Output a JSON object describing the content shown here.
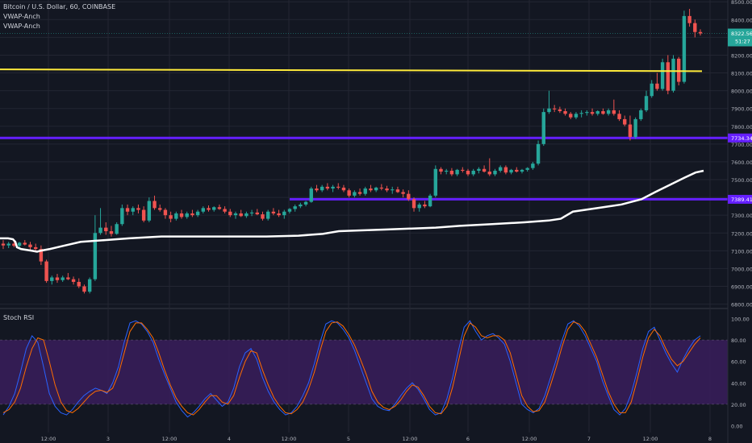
{
  "header": {
    "symbol": "Bitcoin / U.S. Dollar, 60, COINBASE",
    "indicator1": "VWAP-Anch",
    "indicator2": "VWAP-Anch"
  },
  "rsi_pane": {
    "title": "Stoch RSI"
  },
  "colors": {
    "background": "#131722",
    "grid": "#232632",
    "up": "#26a69a",
    "down": "#ef5350",
    "yellow": "#ffeb3b",
    "purple": "#651fff",
    "vwap": "#ffffff",
    "k": "#2962ff",
    "d": "#ff6d00",
    "band": "#3a1d5c"
  },
  "price_tags": {
    "last_price": "8322.56",
    "countdown": "51:27",
    "level_high": "7734.34",
    "level_low": "7389.41"
  },
  "chart_data": [
    {
      "type": "candlestick",
      "pane": "price",
      "y_ticks": [
        "8500.00",
        "8400.00",
        "8300.00",
        "8200.00",
        "8100.00",
        "8000.00",
        "7900.00",
        "7800.00",
        "7700.00",
        "7600.00",
        "7500.00",
        "7400.00",
        "7300.00",
        "7200.00",
        "7100.00",
        "7000.00",
        "6900.00",
        "6800.00"
      ],
      "ylim": [
        6780,
        8510
      ],
      "x_labels": [
        "12:00",
        "3",
        "12:00",
        "4",
        "12:00",
        "5",
        "12:00",
        "6",
        "12:00",
        "7",
        "12:00",
        "8"
      ],
      "candles": [
        [
          7140,
          7160,
          7110,
          7130
        ],
        [
          7130,
          7150,
          7115,
          7140
        ],
        [
          7140,
          7155,
          7120,
          7128
        ],
        [
          7128,
          7150,
          7120,
          7145
        ],
        [
          7145,
          7160,
          7130,
          7135
        ],
        [
          7135,
          7150,
          7100,
          7120
        ],
        [
          7120,
          7140,
          7090,
          7110
        ],
        [
          7110,
          7130,
          7020,
          7040
        ],
        [
          7040,
          7050,
          6920,
          6930
        ],
        [
          6930,
          6960,
          6910,
          6950
        ],
        [
          6950,
          6970,
          6920,
          6935
        ],
        [
          6935,
          6960,
          6925,
          6950
        ],
        [
          6950,
          6975,
          6935,
          6940
        ],
        [
          6940,
          6955,
          6910,
          6925
        ],
        [
          6925,
          6945,
          6890,
          6900
        ],
        [
          6900,
          6910,
          6860,
          6870
        ],
        [
          6870,
          6950,
          6860,
          6940
        ],
        [
          6940,
          7300,
          6930,
          7200
        ],
        [
          7200,
          7340,
          7190,
          7230
        ],
        [
          7230,
          7260,
          7190,
          7210
        ],
        [
          7210,
          7240,
          7180,
          7195
        ],
        [
          7195,
          7260,
          7190,
          7250
        ],
        [
          7250,
          7360,
          7240,
          7340
        ],
        [
          7340,
          7360,
          7300,
          7320
        ],
        [
          7320,
          7350,
          7300,
          7340
        ],
        [
          7340,
          7360,
          7310,
          7330
        ],
        [
          7330,
          7350,
          7260,
          7270
        ],
        [
          7270,
          7400,
          7260,
          7380
        ],
        [
          7380,
          7410,
          7330,
          7340
        ],
        [
          7340,
          7360,
          7320,
          7330
        ],
        [
          7330,
          7340,
          7280,
          7300
        ],
        [
          7300,
          7320,
          7260,
          7280
        ],
        [
          7280,
          7320,
          7270,
          7310
        ],
        [
          7310,
          7330,
          7280,
          7290
        ],
        [
          7290,
          7320,
          7280,
          7310
        ],
        [
          7310,
          7330,
          7290,
          7300
        ],
        [
          7300,
          7330,
          7290,
          7320
        ],
        [
          7320,
          7350,
          7310,
          7340
        ],
        [
          7340,
          7355,
          7320,
          7330
        ],
        [
          7330,
          7350,
          7320,
          7345
        ],
        [
          7345,
          7360,
          7330,
          7335
        ],
        [
          7335,
          7350,
          7310,
          7320
        ],
        [
          7320,
          7335,
          7290,
          7300
        ],
        [
          7300,
          7320,
          7280,
          7310
        ],
        [
          7310,
          7330,
          7290,
          7295
        ],
        [
          7295,
          7320,
          7285,
          7310
        ],
        [
          7310,
          7330,
          7295,
          7315
        ],
        [
          7315,
          7335,
          7300,
          7305
        ],
        [
          7305,
          7320,
          7270,
          7280
        ],
        [
          7280,
          7330,
          7270,
          7320
        ],
        [
          7320,
          7340,
          7300,
          7310
        ],
        [
          7310,
          7330,
          7290,
          7300
        ],
        [
          7300,
          7330,
          7280,
          7320
        ],
        [
          7320,
          7340,
          7310,
          7335
        ],
        [
          7335,
          7360,
          7320,
          7350
        ],
        [
          7350,
          7370,
          7340,
          7360
        ],
        [
          7360,
          7380,
          7350,
          7375
        ],
        [
          7375,
          7460,
          7370,
          7450
        ],
        [
          7450,
          7470,
          7430,
          7440
        ],
        [
          7440,
          7470,
          7430,
          7460
        ],
        [
          7460,
          7480,
          7440,
          7450
        ],
        [
          7450,
          7470,
          7430,
          7460
        ],
        [
          7460,
          7480,
          7445,
          7455
        ],
        [
          7455,
          7470,
          7430,
          7440
        ],
        [
          7440,
          7450,
          7400,
          7410
        ],
        [
          7410,
          7440,
          7400,
          7430
        ],
        [
          7430,
          7450,
          7410,
          7420
        ],
        [
          7420,
          7460,
          7410,
          7450
        ],
        [
          7450,
          7470,
          7430,
          7440
        ],
        [
          7440,
          7460,
          7430,
          7455
        ],
        [
          7455,
          7475,
          7440,
          7450
        ],
        [
          7450,
          7465,
          7430,
          7440
        ],
        [
          7440,
          7460,
          7420,
          7445
        ],
        [
          7445,
          7460,
          7425,
          7430
        ],
        [
          7430,
          7445,
          7400,
          7420
        ],
        [
          7420,
          7440,
          7380,
          7390
        ],
        [
          7390,
          7400,
          7320,
          7340
        ],
        [
          7340,
          7370,
          7320,
          7360
        ],
        [
          7360,
          7380,
          7340,
          7350
        ],
        [
          7350,
          7420,
          7345,
          7410
        ],
        [
          7410,
          7580,
          7400,
          7560
        ],
        [
          7560,
          7570,
          7530,
          7545
        ],
        [
          7545,
          7560,
          7530,
          7550
        ],
        [
          7550,
          7565,
          7520,
          7530
        ],
        [
          7530,
          7560,
          7520,
          7555
        ],
        [
          7555,
          7570,
          7540,
          7550
        ],
        [
          7550,
          7560,
          7520,
          7530
        ],
        [
          7530,
          7560,
          7520,
          7550
        ],
        [
          7550,
          7570,
          7535,
          7560
        ],
        [
          7560,
          7580,
          7540,
          7545
        ],
        [
          7545,
          7620,
          7520,
          7530
        ],
        [
          7530,
          7560,
          7520,
          7550
        ],
        [
          7550,
          7580,
          7540,
          7570
        ],
        [
          7570,
          7580,
          7530,
          7540
        ],
        [
          7540,
          7560,
          7530,
          7555
        ],
        [
          7555,
          7570,
          7540,
          7545
        ],
        [
          7545,
          7560,
          7535,
          7555
        ],
        [
          7555,
          7570,
          7545,
          7565
        ],
        [
          7565,
          7600,
          7555,
          7590
        ],
        [
          7590,
          7720,
          7580,
          7700
        ],
        [
          7700,
          7900,
          7690,
          7880
        ],
        [
          7880,
          8000,
          7870,
          7900
        ],
        [
          7900,
          7920,
          7880,
          7895
        ],
        [
          7895,
          7910,
          7875,
          7885
        ],
        [
          7885,
          7900,
          7860,
          7870
        ],
        [
          7870,
          7880,
          7840,
          7850
        ],
        [
          7850,
          7880,
          7840,
          7870
        ],
        [
          7870,
          7890,
          7850,
          7875
        ],
        [
          7875,
          7890,
          7860,
          7880
        ],
        [
          7880,
          7900,
          7860,
          7870
        ],
        [
          7870,
          7890,
          7860,
          7885
        ],
        [
          7885,
          7900,
          7865,
          7870
        ],
        [
          7870,
          7900,
          7860,
          7890
        ],
        [
          7890,
          7950,
          7860,
          7870
        ],
        [
          7870,
          7890,
          7830,
          7840
        ],
        [
          7840,
          7860,
          7800,
          7810
        ],
        [
          7810,
          7860,
          7720,
          7740
        ],
        [
          7740,
          7850,
          7730,
          7840
        ],
        [
          7840,
          7900,
          7830,
          7890
        ],
        [
          7890,
          8000,
          7880,
          7970
        ],
        [
          7970,
          8060,
          7960,
          8040
        ],
        [
          8040,
          8100,
          8000,
          8010
        ],
        [
          8010,
          8180,
          8000,
          8160
        ],
        [
          8160,
          8200,
          7980,
          8000
        ],
        [
          8000,
          8200,
          7990,
          8180
        ],
        [
          8180,
          8190,
          8030,
          8050
        ],
        [
          8050,
          8450,
          8040,
          8420
        ],
        [
          8420,
          8460,
          8360,
          8380
        ],
        [
          8380,
          8400,
          8300,
          8330
        ],
        [
          8330,
          8345,
          8310,
          8322
        ]
      ],
      "vwap_main": [
        [
          0,
          7170
        ],
        [
          10,
          7170
        ],
        [
          16,
          7165
        ],
        [
          19,
          7150
        ],
        [
          21,
          7120
        ],
        [
          26,
          7110
        ],
        [
          40,
          7100
        ],
        [
          46,
          7095
        ],
        [
          50,
          7100
        ],
        [
          62,
          7110
        ],
        [
          76,
          7125
        ],
        [
          100,
          7150
        ],
        [
          130,
          7160
        ],
        [
          160,
          7170
        ],
        [
          200,
          7180
        ],
        [
          260,
          7180
        ],
        [
          330,
          7180
        ],
        [
          370,
          7185
        ],
        [
          400,
          7195
        ],
        [
          420,
          7210
        ],
        [
          480,
          7220
        ],
        [
          540,
          7230
        ],
        [
          570,
          7240
        ],
        [
          610,
          7250
        ],
        [
          650,
          7260
        ],
        [
          680,
          7270
        ],
        [
          695,
          7280
        ],
        [
          710,
          7320
        ],
        [
          740,
          7340
        ],
        [
          770,
          7360
        ],
        [
          795,
          7390
        ],
        [
          812,
          7430
        ],
        [
          830,
          7470
        ],
        [
          848,
          7510
        ],
        [
          862,
          7540
        ],
        [
          872,
          7550
        ]
      ],
      "vwap_yellow": {
        "start": 8120,
        "end": 8110
      },
      "level_high": {
        "value": 7734.34
      },
      "level_low": {
        "value": 7389.41,
        "from_candle": 53
      }
    },
    {
      "type": "line",
      "pane": "stoch_rsi",
      "y_ticks": [
        "100.00",
        "80.00",
        "60.00",
        "40.00",
        "20.00",
        "0.00"
      ],
      "ylim": [
        -5,
        108
      ],
      "band": [
        20,
        80
      ],
      "series": [
        {
          "values": [
            10,
            18,
            30,
            50,
            72,
            84,
            78,
            55,
            30,
            18,
            12,
            10,
            15,
            22,
            28,
            32,
            35,
            33,
            30,
            40,
            55,
            78,
            96,
            98,
            95,
            88,
            78,
            62,
            48,
            35,
            22,
            14,
            8,
            12,
            18,
            25,
            30,
            24,
            18,
            22,
            35,
            55,
            68,
            72,
            62,
            45,
            32,
            22,
            15,
            10,
            12,
            18,
            28,
            40,
            58,
            78,
            95,
            98,
            96,
            90,
            82,
            70,
            55,
            40,
            25,
            18,
            15,
            14,
            20,
            28,
            35,
            40,
            34,
            25,
            15,
            10,
            12,
            25,
            45,
            70,
            92,
            98,
            88,
            80,
            84,
            86,
            82,
            76,
            60,
            40,
            20,
            15,
            12,
            16,
            28,
            45,
            62,
            80,
            95,
            98,
            93,
            84,
            72,
            60,
            42,
            28,
            15,
            10,
            16,
            30,
            50,
            72,
            88,
            92,
            80,
            68,
            58,
            50,
            62,
            72,
            80,
            84
          ]
        },
        {
          "values": [
            12,
            15,
            22,
            35,
            55,
            72,
            82,
            80,
            60,
            38,
            22,
            14,
            12,
            16,
            22,
            28,
            32,
            33,
            31,
            35,
            48,
            68,
            88,
            96,
            96,
            90,
            82,
            68,
            52,
            38,
            26,
            18,
            12,
            10,
            15,
            22,
            28,
            28,
            22,
            20,
            28,
            45,
            60,
            70,
            68,
            52,
            38,
            26,
            18,
            12,
            11,
            15,
            22,
            34,
            50,
            70,
            88,
            96,
            97,
            93,
            85,
            75,
            62,
            48,
            32,
            22,
            17,
            15,
            18,
            24,
            32,
            38,
            36,
            28,
            18,
            12,
            11,
            18,
            36,
            60,
            84,
            96,
            92,
            84,
            82,
            84,
            84,
            80,
            68,
            48,
            28,
            18,
            13,
            14,
            22,
            38,
            55,
            74,
            90,
            97,
            95,
            88,
            76,
            64,
            48,
            32,
            20,
            12,
            12,
            22,
            42,
            64,
            82,
            90,
            84,
            72,
            62,
            56,
            60,
            68,
            76,
            82
          ]
        }
      ]
    }
  ]
}
